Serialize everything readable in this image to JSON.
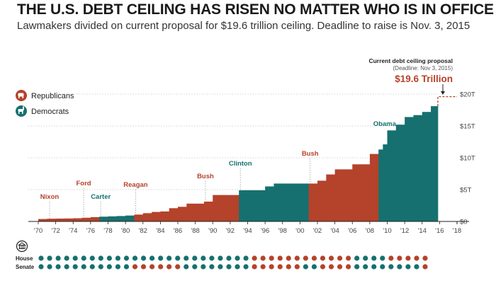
{
  "header": {
    "title": "THE U.S. DEBT CEILING HAS RISEN NO MATTER WHO IS IN OFFICE",
    "subtitle": "Lawmakers divided on current proposal for $19.6 trillion ceiling. Deadline to raise is Nov. 3, 2015"
  },
  "legend": [
    {
      "label": "Republicans",
      "color": "#b5422a",
      "icon": "elephant-icon"
    },
    {
      "label": "Democrats",
      "color": "#16706f",
      "icon": "donkey-icon"
    }
  ],
  "proposal": {
    "heading": "Current debt ceiling proposal",
    "deadline": "(Deadline: Nov 3, 2015)",
    "value_label": "$19.6 Trillion",
    "value": 19.6
  },
  "congress_rows": {
    "icon": "capitol-icon",
    "house_label": "House",
    "senate_label": "Senate"
  },
  "chart_data": {
    "type": "area",
    "title": "THE U.S. DEBT CEILING HAS RISEN NO MATTER WHO IS IN OFFICE",
    "xlim": [
      1970,
      2018
    ],
    "ylim": [
      0,
      20
    ],
    "x_ticks": [
      "'70",
      "'72",
      "'74",
      "'76",
      "'78",
      "'80",
      "'82",
      "'84",
      "'86",
      "'88",
      "'90",
      "'92",
      "'94",
      "'96",
      "'98",
      "'00",
      "'02",
      "'04",
      "'06",
      "'08",
      "'10",
      "'12",
      "'14",
      "'16",
      "'18"
    ],
    "y_ticks": [
      "$0",
      "$5T",
      "$10T",
      "$15T",
      "$20T"
    ],
    "grid": "horizontal dotted",
    "legend_position": "top-left",
    "presidents": [
      {
        "name": "Nixon",
        "party": "R",
        "start": 1970,
        "end": 1974.6
      },
      {
        "name": "Ford",
        "party": "R",
        "start": 1974.6,
        "end": 1977
      },
      {
        "name": "Carter",
        "party": "D",
        "start": 1977,
        "end": 1981
      },
      {
        "name": "Reagan",
        "party": "R",
        "start": 1981,
        "end": 1989
      },
      {
        "name": "Bush",
        "party": "R",
        "start": 1989,
        "end": 1993
      },
      {
        "name": "Clinton",
        "party": "D",
        "start": 1993,
        "end": 2001
      },
      {
        "name": "Bush",
        "party": "R",
        "start": 2001,
        "end": 2009
      },
      {
        "name": "Obama",
        "party": "D",
        "start": 2009,
        "end": 2015.8
      }
    ],
    "debt_ceiling_steps": [
      [
        1970,
        0.38
      ],
      [
        1971,
        0.43
      ],
      [
        1972,
        0.45
      ],
      [
        1973,
        0.47
      ],
      [
        1974,
        0.5
      ],
      [
        1975,
        0.58
      ],
      [
        1976,
        0.68
      ],
      [
        1977,
        0.75
      ],
      [
        1978,
        0.8
      ],
      [
        1979,
        0.85
      ],
      [
        1980,
        0.93
      ],
      [
        1981,
        1.08
      ],
      [
        1982,
        1.3
      ],
      [
        1983,
        1.49
      ],
      [
        1984,
        1.57
      ],
      [
        1985,
        2.08
      ],
      [
        1986,
        2.3
      ],
      [
        1987,
        2.8
      ],
      [
        1988,
        2.8
      ],
      [
        1989,
        3.12
      ],
      [
        1990,
        4.15
      ],
      [
        1991,
        4.15
      ],
      [
        1992,
        4.15
      ],
      [
        1993,
        4.9
      ],
      [
        1994,
        4.9
      ],
      [
        1995,
        4.9
      ],
      [
        1996,
        5.5
      ],
      [
        1997,
        5.95
      ],
      [
        1998,
        5.95
      ],
      [
        1999,
        5.95
      ],
      [
        2000,
        5.95
      ],
      [
        2001,
        5.95
      ],
      [
        2002,
        6.4
      ],
      [
        2003,
        7.38
      ],
      [
        2004,
        8.18
      ],
      [
        2005,
        8.18
      ],
      [
        2006,
        8.97
      ],
      [
        2007,
        8.97
      ],
      [
        2008,
        10.6
      ],
      [
        2009,
        11.3
      ],
      [
        2009.5,
        12.1
      ],
      [
        2010,
        14.3
      ],
      [
        2011,
        15.2
      ],
      [
        2012,
        16.4
      ],
      [
        2013,
        16.7
      ],
      [
        2014,
        17.2
      ],
      [
        2015,
        18.1
      ]
    ],
    "proposal_value": 19.6,
    "congress": {
      "start_year": 1970,
      "house": [
        "D",
        "D",
        "D",
        "D",
        "D",
        "D",
        "D",
        "D",
        "D",
        "D",
        "D",
        "D",
        "D",
        "D",
        "D",
        "D",
        "D",
        "D",
        "D",
        "D",
        "D",
        "D",
        "D",
        "D",
        "D",
        "R",
        "R",
        "R",
        "R",
        "R",
        "R",
        "R",
        "R",
        "R",
        "R",
        "R",
        "R",
        "D",
        "D",
        "D",
        "D",
        "R",
        "R",
        "R",
        "R",
        "R"
      ],
      "senate": [
        "D",
        "D",
        "D",
        "D",
        "D",
        "D",
        "D",
        "D",
        "D",
        "D",
        "D",
        "R",
        "R",
        "R",
        "R",
        "R",
        "R",
        "D",
        "D",
        "D",
        "D",
        "D",
        "D",
        "D",
        "D",
        "R",
        "R",
        "R",
        "R",
        "R",
        "R",
        "D",
        "D",
        "R",
        "R",
        "R",
        "R",
        "D",
        "D",
        "D",
        "D",
        "D",
        "D",
        "D",
        "D",
        "R"
      ]
    }
  }
}
